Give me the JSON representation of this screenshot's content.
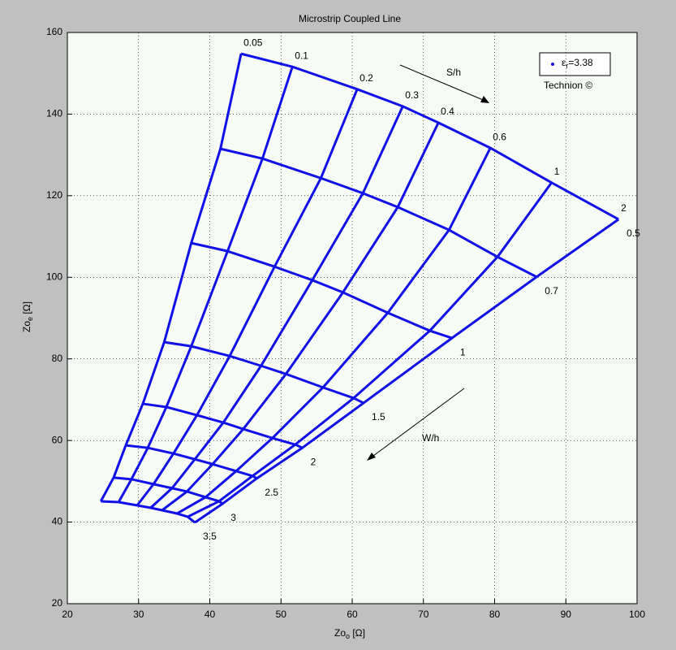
{
  "chart_data": {
    "type": "line",
    "title": "Microstrip Coupled Line",
    "xlabel": {
      "main": "Zo",
      "sub": "o",
      "unit": " [Ω]"
    },
    "ylabel": {
      "main": "Zo",
      "sub": "e",
      "unit": " [Ω]"
    },
    "xlim": [
      20,
      100
    ],
    "ylim": [
      20,
      160
    ],
    "xticks": [
      20,
      30,
      40,
      50,
      60,
      70,
      80,
      90,
      100
    ],
    "yticks": [
      20,
      40,
      60,
      80,
      100,
      120,
      140,
      160
    ],
    "grid": true,
    "color": "#1010e8",
    "s_over_h": [
      "0.05",
      "0.1",
      "0.2",
      "0.3",
      "0.4",
      "0.6",
      "1",
      "2"
    ],
    "series": [
      {
        "name": "0.5",
        "x": [
          44.4,
          51.6,
          60.7,
          67.1,
          72.1,
          79.4,
          88.0,
          97.4
        ],
        "y": [
          154.8,
          151.6,
          146.1,
          141.9,
          137.9,
          131.7,
          123.2,
          114.2
        ]
      },
      {
        "name": "0.7",
        "x": [
          41.5,
          47.4,
          55.6,
          61.5,
          66.4,
          73.6,
          80.4,
          85.9
        ],
        "y": [
          131.5,
          129.1,
          124.3,
          120.6,
          117.2,
          111.6,
          105.0,
          100.1
        ]
      },
      {
        "name": "1",
        "x": [
          37.4,
          42.5,
          49.1,
          54.4,
          58.7,
          65.0,
          70.9,
          74.0
        ],
        "y": [
          108.4,
          106.4,
          102.6,
          99.3,
          96.3,
          91.3,
          86.9,
          85.1
        ]
      },
      {
        "name": "1.5",
        "x": [
          33.6,
          37.4,
          42.8,
          47.2,
          50.7,
          55.9,
          60.2,
          61.6
        ],
        "y": [
          84.1,
          83.1,
          80.7,
          78.3,
          76.3,
          73.0,
          70.4,
          69.2
        ]
      },
      {
        "name": "2",
        "x": [
          30.6,
          33.9,
          38.2,
          41.9,
          44.7,
          48.8,
          52.0,
          53.0
        ],
        "y": [
          69.0,
          68.2,
          66.2,
          64.4,
          62.8,
          60.6,
          59.0,
          58.2
        ]
      },
      {
        "name": "2.5",
        "x": [
          28.2,
          31.3,
          34.9,
          37.9,
          40.4,
          43.7,
          46.0,
          46.6
        ],
        "y": [
          58.8,
          58.2,
          56.8,
          55.4,
          54.2,
          52.5,
          51.3,
          50.7
        ]
      },
      {
        "name": "3",
        "x": [
          26.5,
          29.0,
          32.1,
          34.7,
          36.8,
          39.4,
          41.3,
          41.8
        ],
        "y": [
          50.9,
          50.5,
          49.3,
          48.3,
          47.5,
          46.1,
          45.1,
          44.5
        ]
      },
      {
        "name": "3.5",
        "x": [
          24.7,
          27.2,
          29.8,
          31.7,
          33.3,
          35.4,
          36.9,
          37.9
        ],
        "y": [
          45.1,
          44.9,
          44.1,
          43.5,
          42.9,
          42.1,
          41.3,
          39.9
        ]
      }
    ],
    "annotations": [
      "S/h",
      "W/h"
    ],
    "legend": {
      "symbol": "ε",
      "sub": "r",
      "text": "=3.38"
    },
    "credit": "Technion ©"
  }
}
